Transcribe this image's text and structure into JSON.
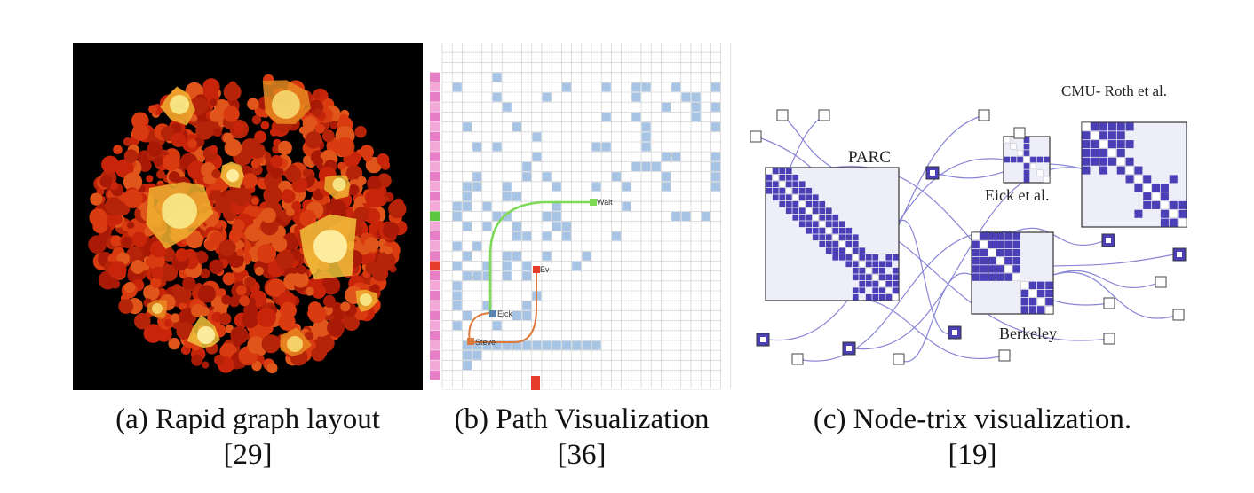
{
  "figure": {
    "panels": [
      {
        "id": "a",
        "caption_line1": "(a) Rapid graph layout",
        "caption_line2": "[29]"
      },
      {
        "id": "b",
        "caption_line1": "(b) Path Visualization",
        "caption_line2": "[36]",
        "node_labels": [
          "Walt",
          "Eick",
          "Steve",
          "Ev"
        ]
      },
      {
        "id": "c",
        "caption_line1": "(c) Node-trix visualization.",
        "caption_line2": "[19]",
        "cluster_labels": {
          "parc": "PARC",
          "eick": "Eick et al.",
          "cmu": "CMU- Roth et al.",
          "berkeley": "Berkeley"
        }
      }
    ]
  },
  "colors": {
    "graph_bg": "#000000",
    "graph_red": "#c8240a",
    "graph_yellow": "#f5e27a",
    "matrix_cell": "#a8c4e4",
    "matrix_grid": "#c8c8c8",
    "path_green": "#7ed957",
    "path_orange": "#e07a3a",
    "nodetrix_fill": "#4a3fb5",
    "nodetrix_bg": "#eeeef8",
    "nodetrix_edge": "#8a86d6"
  }
}
